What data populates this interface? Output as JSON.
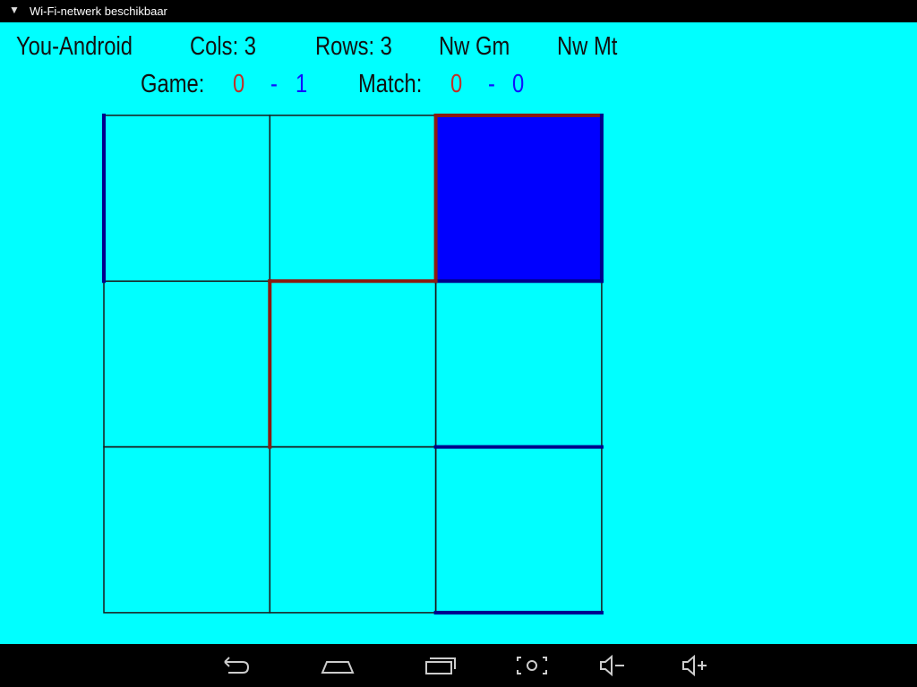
{
  "statusbar": {
    "wifi_icon": "wifi-question-icon",
    "notification": "Wi-Fi-netwerk beschikbaar"
  },
  "header": {
    "player": "You-Android",
    "cols": "Cols: 3",
    "rows": "Rows: 3",
    "new_game": "Nw Gm",
    "new_match": "Nw Mt"
  },
  "scores": {
    "game_label": "Game:",
    "game_red": "0",
    "game_sep": "-",
    "game_blue": "1",
    "match_label": "Match:",
    "match_red": "0",
    "match_sep": "-",
    "match_blue": "0"
  },
  "colors": {
    "background": "#00ffff",
    "red": "#c0302a",
    "blue": "#1010ff",
    "grid": "#1a1a1a",
    "fill_blue": "#0000ff",
    "edge_red": "#8b1a10",
    "edge_blue": "#00008b"
  },
  "board": {
    "cols": 3,
    "rows": 3,
    "filled_boxes": [
      {
        "row": 0,
        "col": 2,
        "owner": "blue"
      }
    ],
    "edges": [
      {
        "row": 0,
        "col": 0,
        "side": "left",
        "owner": "blue"
      },
      {
        "row": 0,
        "col": 2,
        "side": "top",
        "owner": "red"
      },
      {
        "row": 0,
        "col": 2,
        "side": "left",
        "owner": "red"
      },
      {
        "row": 0,
        "col": 2,
        "side": "right",
        "owner": "blue"
      },
      {
        "row": 0,
        "col": 2,
        "side": "bottom",
        "owner": "blue"
      },
      {
        "row": 1,
        "col": 1,
        "side": "top",
        "owner": "red"
      },
      {
        "row": 1,
        "col": 1,
        "side": "left",
        "owner": "red"
      },
      {
        "row": 2,
        "col": 2,
        "side": "top",
        "owner": "blue"
      },
      {
        "row": 2,
        "col": 2,
        "side": "bottom",
        "owner": "blue"
      }
    ]
  },
  "navbar": {
    "back": "back-icon",
    "home": "home-icon",
    "recents": "recents-icon",
    "screenshot": "screenshot-icon",
    "vol_down": "volume-down-icon",
    "vol_up": "volume-up-icon"
  }
}
